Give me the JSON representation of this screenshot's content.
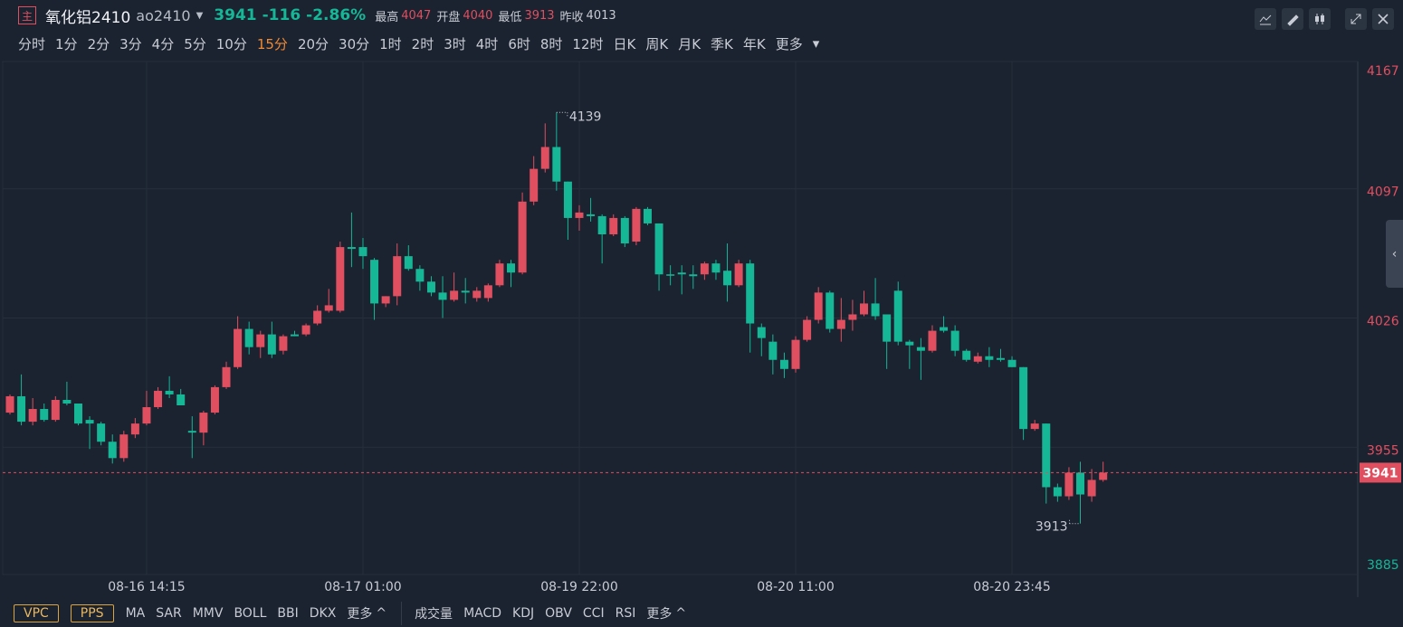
{
  "header": {
    "icon": "主",
    "name": "氧化铝2410",
    "code": "ao2410",
    "last": "3941",
    "change": "-116",
    "change_pct": "-2.86%",
    "stats": [
      {
        "label": "最高",
        "value": "4047"
      },
      {
        "label": "开盘",
        "value": "4040"
      },
      {
        "label": "最低",
        "value": "3913"
      },
      {
        "label": "昨收",
        "value": "4013"
      }
    ]
  },
  "periods": [
    "分时",
    "1分",
    "2分",
    "3分",
    "4分",
    "5分",
    "10分",
    "15分",
    "20分",
    "30分",
    "1时",
    "2时",
    "3时",
    "4时",
    "6时",
    "8时",
    "12时",
    "日K",
    "周K",
    "月K",
    "季K",
    "年K",
    "更多"
  ],
  "active_period_index": 7,
  "indicators": {
    "boxed": [
      "VPC",
      "PPS"
    ],
    "main": [
      "MA",
      "SAR",
      "MMV",
      "BOLL",
      "BBI",
      "DKX",
      "更多"
    ],
    "sub": [
      "成交量",
      "MACD",
      "KDJ",
      "OBV",
      "CCI",
      "RSI",
      "更多"
    ]
  },
  "chart_data": {
    "type": "candlestick",
    "up_color": "#e04f5f",
    "down_color": "#16b796",
    "grid": true,
    "ylim": [
      3885,
      4167
    ],
    "yticks": [
      3885,
      3955,
      4026,
      4097,
      4167
    ],
    "categories": [
      null,
      null,
      null,
      null,
      null,
      null,
      null,
      null,
      null,
      null,
      null,
      null,
      "08-16 14:15",
      null,
      null,
      null,
      null,
      null,
      null,
      null,
      null,
      null,
      null,
      null,
      null,
      null,
      null,
      null,
      null,
      null,
      null,
      "08-17 01:00",
      null,
      null,
      null,
      null,
      null,
      null,
      null,
      null,
      null,
      null,
      null,
      null,
      null,
      null,
      null,
      null,
      null,
      null,
      "08-19 22:00",
      null,
      null,
      null,
      null,
      null,
      null,
      null,
      null,
      null,
      null,
      null,
      null,
      null,
      null,
      null,
      null,
      null,
      null,
      "08-20 11:00",
      null,
      null,
      null,
      null,
      null,
      null,
      null,
      null,
      null,
      null,
      null,
      null,
      null,
      null,
      null,
      null,
      null,
      null,
      "08-20 23:45",
      null,
      null,
      null,
      null,
      null,
      null,
      null,
      null
    ],
    "open": [
      3974,
      3983,
      3969,
      3976,
      3970,
      3981,
      3979,
      3970,
      3968,
      3958,
      3949,
      3962,
      3968,
      3977,
      3986,
      3984,
      3964,
      3963,
      3974,
      3988,
      3999,
      4020,
      4010,
      4017,
      4008,
      4017,
      4017,
      4023,
      4030,
      4030,
      4065,
      4065,
      4058,
      4034,
      4038,
      4060,
      4053,
      4046,
      4040,
      4036,
      4041,
      4037,
      4037,
      4044,
      4056,
      4051,
      4090,
      4108,
      4120,
      4101,
      4081,
      4083,
      4082,
      4072,
      4081,
      4068,
      4086,
      4078,
      4050,
      4051,
      4050,
      4050,
      4056,
      4052,
      4044,
      4056,
      4021,
      4013,
      4003,
      3998,
      4014,
      4025,
      4040,
      4020,
      4025,
      4028,
      4034,
      4028,
      4041,
      4013,
      4010,
      4008,
      4021,
      4019,
      4008,
      4002,
      4005,
      4004,
      4003,
      3999,
      3965,
      3968,
      3933,
      3928,
      3941,
      3928,
      3937
    ],
    "high": [
      3984,
      3995,
      3982,
      3979,
      3983,
      3991,
      3979,
      3972,
      3969,
      3962,
      3964,
      3971,
      3986,
      3988,
      3994,
      3987,
      3972,
      3975,
      3989,
      4002,
      4027,
      4024,
      4019,
      4024,
      4017,
      4019,
      4023,
      4033,
      4042,
      4068,
      4084,
      4070,
      4059,
      4038,
      4067,
      4066,
      4055,
      4049,
      4049,
      4051,
      4048,
      4043,
      4045,
      4058,
      4058,
      4095,
      4115,
      4133,
      4139,
      4101,
      4088,
      4092,
      4083,
      4083,
      4082,
      4087,
      4087,
      4078,
      4055,
      4055,
      4055,
      4057,
      4058,
      4067,
      4058,
      4058,
      4023,
      4017,
      4007,
      4016,
      4027,
      4043,
      4041,
      4037,
      4036,
      4041,
      4048,
      4028,
      4046,
      4014,
      4015,
      4022,
      4027,
      4022,
      4009,
      4007,
      4010,
      4009,
      4005,
      3999,
      3970,
      3968,
      3935,
      3944,
      3947,
      3943,
      3947
    ],
    "low": [
      3973,
      3967,
      3967,
      3969,
      3969,
      3978,
      3967,
      3954,
      3956,
      3946,
      3947,
      3960,
      3967,
      3976,
      3982,
      3978,
      3949,
      3956,
      3973,
      3987,
      3998,
      4006,
      4004,
      4004,
      4006,
      4016,
      4016,
      4022,
      4029,
      4029,
      4054,
      4053,
      4025,
      4032,
      4033,
      4052,
      4041,
      4038,
      4026,
      4035,
      4034,
      4035,
      4035,
      4043,
      4043,
      4050,
      4088,
      4106,
      4096,
      4069,
      4074,
      4079,
      4056,
      4071,
      4065,
      4066,
      4077,
      4041,
      4044,
      4039,
      4042,
      4047,
      4047,
      4035,
      4043,
      4007,
      4005,
      3995,
      3993,
      3996,
      4013,
      4023,
      4018,
      4013,
      4019,
      4027,
      4025,
      3998,
      4011,
      3998,
      3992,
      4007,
      4018,
      4005,
      4002,
      4001,
      3999,
      4002,
      3999,
      3959,
      3964,
      3924,
      3925,
      3926,
      3913,
      3925,
      3936
    ],
    "close": [
      3983,
      3969,
      3976,
      3970,
      3981,
      3979,
      3968,
      3968,
      3958,
      3949,
      3962,
      3968,
      3977,
      3986,
      3984,
      3978,
      3963,
      3974,
      3988,
      3999,
      4020,
      4010,
      4017,
      4006,
      4016,
      4016,
      4022,
      4030,
      4033,
      4065,
      4064,
      4060,
      4034,
      4038,
      4060,
      4053,
      4046,
      4040,
      4036,
      4041,
      4040,
      4041,
      4044,
      4056,
      4051,
      4090,
      4108,
      4120,
      4101,
      4081,
      4084,
      4082,
      4072,
      4081,
      4067,
      4086,
      4078,
      4050,
      4050,
      4050,
      4049,
      4056,
      4051,
      4044,
      4056,
      4023,
      4015,
      4003,
      3998,
      4014,
      4025,
      4040,
      4020,
      4025,
      4028,
      4034,
      4027,
      4013,
      4013,
      4011,
      4008,
      4019,
      4019,
      4008,
      4003,
      4005,
      4003,
      4003,
      3999,
      3965,
      3968,
      3933,
      3928,
      3941,
      3929,
      3937,
      3941
    ]
  }
}
